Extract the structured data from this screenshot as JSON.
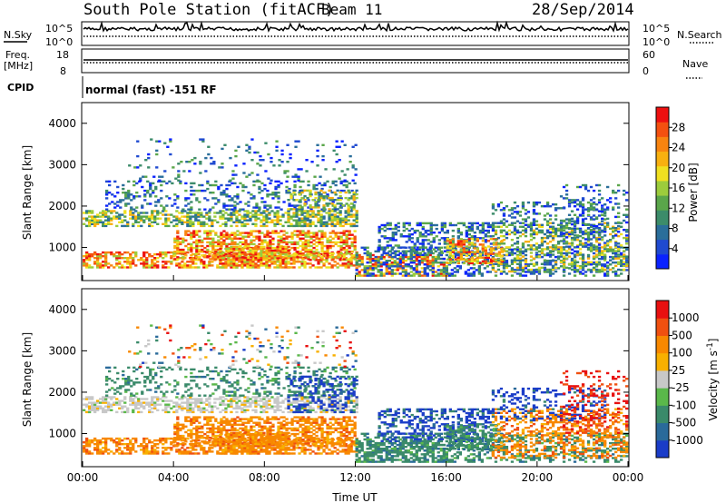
{
  "header": {
    "station": "South Pole Station (fitACF)",
    "beam": "Beam 11",
    "date": "28/Sep/2014"
  },
  "top_panels": {
    "nsky_label": "N.Sky",
    "nsearch_label": "N.Search",
    "noise_ticks": [
      "10^5",
      "10^0"
    ],
    "freq_label_1": "Freq.",
    "freq_label_2": "[MHz]",
    "freq_ticks": [
      "18",
      "8"
    ],
    "nave_label": "Nave",
    "nave_ticks": [
      "60",
      "0"
    ],
    "cpid_label": "CPID",
    "cpid_text": "normal (fast) -151 RF"
  },
  "x_axis": {
    "label": "Time UT",
    "ticks": [
      "00:00",
      "04:00",
      "08:00",
      "12:00",
      "16:00",
      "20:00",
      "00:00"
    ]
  },
  "chart_data": [
    {
      "type": "heatmap",
      "panel": "power",
      "ylabel": "Slant Range [km]",
      "y_ticks": [
        "1000",
        "2000",
        "3000",
        "4000"
      ],
      "ylim": [
        200,
        4500
      ],
      "xlim_hours": [
        0,
        24
      ],
      "colorbar_label": "Power [dB]",
      "colorbar_ticks": [
        "4",
        "8",
        "12",
        "16",
        "20",
        "24",
        "28"
      ],
      "colorbar_range": [
        0,
        32
      ],
      "colorbar_colors": [
        "#0a22ff",
        "#1f4ad0",
        "#2a6e9a",
        "#3c8c6a",
        "#5aa64a",
        "#9ccc3c",
        "#f0e020",
        "#f8b010",
        "#f88410",
        "#f45010",
        "#ee1010"
      ]
    },
    {
      "type": "heatmap",
      "panel": "velocity",
      "ylabel": "Slant Range [km]",
      "y_ticks": [
        "1000",
        "2000",
        "3000",
        "4000"
      ],
      "ylim": [
        200,
        4500
      ],
      "xlim_hours": [
        0,
        24
      ],
      "colorbar_label": "Velocity [m s^-1]",
      "colorbar_ticks": [
        "1000",
        "500",
        "100",
        "25",
        "-25",
        "-100",
        "-500",
        "-1000"
      ],
      "colorbar_colors": [
        "#1a3cc8",
        "#2a6a9a",
        "#3a8a6a",
        "#5ab84a",
        "#c8c8c8",
        "#f8b000",
        "#f88800",
        "#f05010",
        "#e81010"
      ]
    }
  ]
}
